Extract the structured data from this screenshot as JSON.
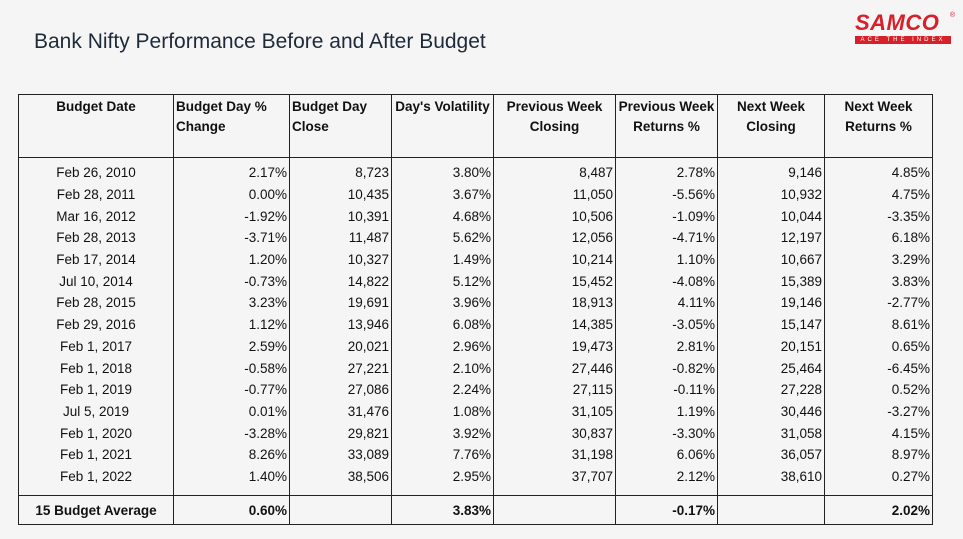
{
  "title": "Bank Nifty Performance Before and After Budget",
  "logo": {
    "brand": "SAMCO",
    "tagline": "ACE THE INDEX",
    "reg": "®"
  },
  "colors": {
    "brand_red": "#d6202a",
    "text": "#111111",
    "title": "#1e2a3a"
  },
  "table": {
    "headers": [
      "Budget Date",
      "Budget Day % Change",
      "Budget Day Close",
      "Day's Volatility",
      "Previous Week Closing",
      "Previous Week Returns %",
      "Next Week Closing",
      "Next Week Returns %"
    ],
    "rows": [
      [
        "Feb 26, 2010",
        "2.17%",
        "8,723",
        "3.80%",
        "8,487",
        "2.78%",
        "9,146",
        "4.85%"
      ],
      [
        "Feb 28, 2011",
        "0.00%",
        "10,435",
        "3.67%",
        "11,050",
        "-5.56%",
        "10,932",
        "4.75%"
      ],
      [
        "Mar 16, 2012",
        "-1.92%",
        "10,391",
        "4.68%",
        "10,506",
        "-1.09%",
        "10,044",
        "-3.35%"
      ],
      [
        "Feb 28, 2013",
        "-3.71%",
        "11,487",
        "5.62%",
        "12,056",
        "-4.71%",
        "12,197",
        "6.18%"
      ],
      [
        "Feb 17, 2014",
        "1.20%",
        "10,327",
        "1.49%",
        "10,214",
        "1.10%",
        "10,667",
        "3.29%"
      ],
      [
        "Jul 10, 2014",
        "-0.73%",
        "14,822",
        "5.12%",
        "15,452",
        "-4.08%",
        "15,389",
        "3.83%"
      ],
      [
        "Feb 28, 2015",
        "3.23%",
        "19,691",
        "3.96%",
        "18,913",
        "4.11%",
        "19,146",
        "-2.77%"
      ],
      [
        "Feb 29, 2016",
        "1.12%",
        "13,946",
        "6.08%",
        "14,385",
        "-3.05%",
        "15,147",
        "8.61%"
      ],
      [
        "Feb 1, 2017",
        "2.59%",
        "20,021",
        "2.96%",
        "19,473",
        "2.81%",
        "20,151",
        "0.65%"
      ],
      [
        "Feb 1, 2018",
        "-0.58%",
        "27,221",
        "2.10%",
        "27,446",
        "-0.82%",
        "25,464",
        "-6.45%"
      ],
      [
        "Feb 1, 2019",
        "-0.77%",
        "27,086",
        "2.24%",
        "27,115",
        "-0.11%",
        "27,228",
        "0.52%"
      ],
      [
        "Jul 5, 2019",
        "0.01%",
        "31,476",
        "1.08%",
        "31,105",
        "1.19%",
        "30,446",
        "-3.27%"
      ],
      [
        "Feb 1, 2020",
        "-3.28%",
        "29,821",
        "3.92%",
        "30,837",
        "-3.30%",
        "31,058",
        "4.15%"
      ],
      [
        "Feb 1, 2021",
        "8.26%",
        "33,089",
        "7.76%",
        "31,198",
        "6.06%",
        "36,057",
        "8.97%"
      ],
      [
        "Feb 1, 2022",
        "1.40%",
        "38,506",
        "2.95%",
        "37,707",
        "2.12%",
        "38,610",
        "0.27%"
      ]
    ],
    "average": [
      "15 Budget Average",
      "0.60%",
      "",
      "3.83%",
      "",
      "-0.17%",
      "",
      "2.02%"
    ]
  }
}
